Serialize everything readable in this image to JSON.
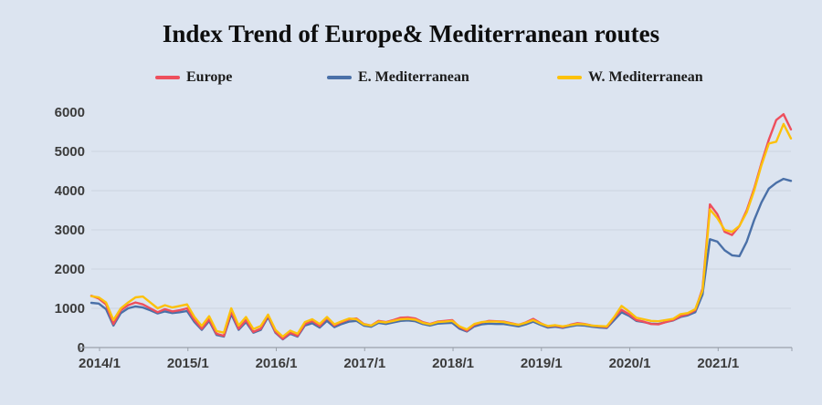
{
  "title": "Index Trend of Europe& Mediterranean routes",
  "legend": [
    {
      "label": "Europe",
      "color": "#ee4f5d"
    },
    {
      "label": "E. Mediterranean",
      "color": "#4a70a8"
    },
    {
      "label": "W. Mediterranean",
      "color": "#fcc10b"
    }
  ],
  "colors": {
    "background": "#dce4f0",
    "grid": "#ccd3df",
    "axis": "#9aa1ab",
    "tick_text": "#3b3b3b"
  },
  "chart_data": {
    "type": "line",
    "title": "Index Trend of Europe& Mediterranean routes",
    "xlabel": "",
    "ylabel": "",
    "ylim": [
      0,
      6000
    ],
    "yticks": [
      0,
      1000,
      2000,
      3000,
      4000,
      5000,
      6000
    ],
    "grid": "horizontal",
    "legend_position": "top",
    "xticks": {
      "labels": [
        "2014/1",
        "2015/1",
        "2016/1",
        "2017/1",
        "2018/1",
        "2019/1",
        "2020/1",
        "2021/1"
      ],
      "month_indices": [
        0,
        12,
        24,
        36,
        48,
        60,
        72,
        84
      ]
    },
    "x": [
      "2014/1",
      "2014/2",
      "2014/3",
      "2014/4",
      "2014/5",
      "2014/6",
      "2014/7",
      "2014/8",
      "2014/9",
      "2014/10",
      "2014/11",
      "2014/12",
      "2015/1",
      "2015/2",
      "2015/3",
      "2015/4",
      "2015/5",
      "2015/6",
      "2015/7",
      "2015/8",
      "2015/9",
      "2015/10",
      "2015/11",
      "2015/12",
      "2016/1",
      "2016/2",
      "2016/3",
      "2016/4",
      "2016/5",
      "2016/6",
      "2016/7",
      "2016/8",
      "2016/9",
      "2016/10",
      "2016/11",
      "2016/12",
      "2017/1",
      "2017/2",
      "2017/3",
      "2017/4",
      "2017/5",
      "2017/6",
      "2017/7",
      "2017/8",
      "2017/9",
      "2017/10",
      "2017/11",
      "2017/12",
      "2018/1",
      "2018/2",
      "2018/3",
      "2018/4",
      "2018/5",
      "2018/6",
      "2018/7",
      "2018/8",
      "2018/9",
      "2018/10",
      "2018/11",
      "2018/12",
      "2019/1",
      "2019/2",
      "2019/3",
      "2019/4",
      "2019/5",
      "2019/6",
      "2019/7",
      "2019/8",
      "2019/9",
      "2019/10",
      "2019/11",
      "2019/12",
      "2020/1",
      "2020/2",
      "2020/3",
      "2020/4",
      "2020/5",
      "2020/6",
      "2020/7",
      "2020/8",
      "2020/9",
      "2020/10",
      "2020/11",
      "2020/12",
      "2021/1",
      "2021/2",
      "2021/3",
      "2021/4",
      "2021/5",
      "2021/6",
      "2021/7",
      "2021/8",
      "2021/9",
      "2021/10",
      "2021/11",
      "2021/12"
    ],
    "series": [
      {
        "name": "Europe",
        "color": "#ee4f5d",
        "values": [
          1320,
          1250,
          1100,
          600,
          950,
          1080,
          1150,
          1100,
          1000,
          900,
          980,
          920,
          950,
          1000,
          700,
          480,
          720,
          350,
          300,
          920,
          480,
          700,
          400,
          480,
          820,
          400,
          220,
          380,
          300,
          600,
          680,
          550,
          760,
          560,
          650,
          720,
          740,
          600,
          560,
          680,
          650,
          700,
          760,
          770,
          740,
          650,
          600,
          660,
          680,
          700,
          520,
          430,
          580,
          640,
          680,
          670,
          660,
          620,
          580,
          640,
          730,
          620,
          540,
          560,
          520,
          580,
          620,
          600,
          560,
          540,
          520,
          760,
          960,
          850,
          700,
          660,
          600,
          590,
          650,
          700,
          800,
          850,
          950,
          1500,
          3650,
          3400,
          2950,
          2870,
          3100,
          3500,
          4050,
          4700,
          5300,
          5800,
          5950,
          5560
        ]
      },
      {
        "name": "E. Mediterranean",
        "color": "#4a70a8",
        "values": [
          1140,
          1120,
          980,
          560,
          880,
          1000,
          1050,
          1020,
          950,
          870,
          920,
          880,
          900,
          930,
          650,
          450,
          680,
          320,
          280,
          850,
          450,
          650,
          380,
          450,
          780,
          380,
          210,
          350,
          280,
          560,
          620,
          510,
          680,
          520,
          600,
          660,
          680,
          560,
          530,
          630,
          600,
          640,
          680,
          690,
          670,
          600,
          560,
          610,
          620,
          630,
          480,
          410,
          540,
          590,
          610,
          600,
          600,
          570,
          540,
          590,
          660,
          580,
          510,
          530,
          500,
          540,
          570,
          560,
          530,
          510,
          500,
          700,
          900,
          810,
          680,
          650,
          610,
          600,
          650,
          690,
          780,
          820,
          900,
          1350,
          2760,
          2700,
          2480,
          2350,
          2330,
          2700,
          3250,
          3700,
          4050,
          4200,
          4300,
          4250
        ]
      },
      {
        "name": "W. Mediterranean",
        "color": "#fcc10b",
        "values": [
          1310,
          1280,
          1150,
          700,
          1000,
          1150,
          1280,
          1300,
          1150,
          1000,
          1080,
          1020,
          1060,
          1100,
          780,
          550,
          800,
          420,
          380,
          1000,
          560,
          780,
          470,
          550,
          840,
          450,
          280,
          430,
          350,
          650,
          720,
          600,
          780,
          590,
          670,
          740,
          720,
          590,
          560,
          660,
          640,
          680,
          720,
          730,
          710,
          630,
          590,
          650,
          660,
          680,
          540,
          460,
          600,
          650,
          660,
          660,
          650,
          610,
          580,
          630,
          700,
          610,
          550,
          570,
          540,
          570,
          600,
          590,
          560,
          550,
          540,
          780,
          1060,
          920,
          760,
          720,
          680,
          670,
          700,
          730,
          850,
          880,
          980,
          1450,
          3520,
          3300,
          3000,
          2950,
          3100,
          3450,
          4000,
          4650,
          5200,
          5250,
          5700,
          5330
        ]
      }
    ]
  }
}
